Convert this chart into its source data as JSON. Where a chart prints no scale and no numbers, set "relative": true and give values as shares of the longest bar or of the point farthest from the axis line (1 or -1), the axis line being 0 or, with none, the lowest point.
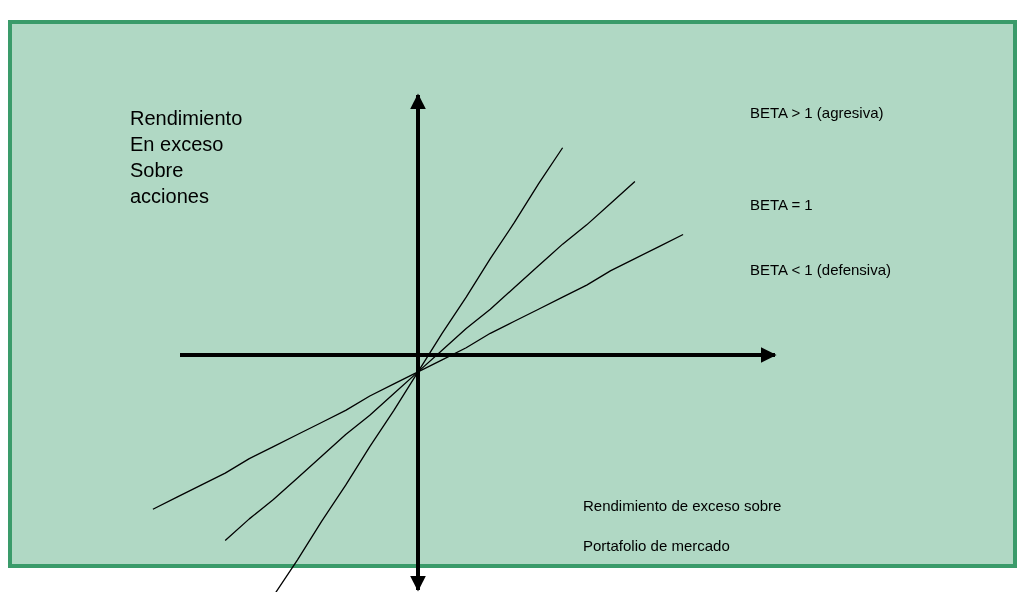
{
  "chart_data": {
    "type": "line",
    "relative": true,
    "ylabel": "Rendimiento\nEn exceso\nSobre\nacciones",
    "xlabel": "Rendimiento de exceso sobre\nPortafolio de mercado",
    "marker": "none",
    "line_style": "solid",
    "legend": false,
    "categories": [
      null,
      null,
      null,
      null,
      null,
      null,
      null,
      null,
      null,
      null,
      null,
      null,
      null,
      null,
      null,
      null,
      null,
      null,
      null,
      null,
      null,
      null,
      null
    ],
    "series": [
      {
        "name": "BETA > 1 (agresiva)",
        "color": "#000000",
        "values": [
          null,
          null,
          null,
          null,
          null,
          -1,
          -0.85,
          -0.69,
          -0.54,
          -0.38,
          -0.23,
          -0.07,
          0.09,
          0.24,
          0.4,
          0.55,
          0.71,
          0.86,
          null,
          null,
          null,
          null,
          null
        ]
      },
      {
        "name": "BETA = 1",
        "color": "#000000",
        "values": [
          null,
          null,
          null,
          -0.77,
          -0.68,
          -0.6,
          -0.51,
          -0.42,
          -0.33,
          -0.25,
          -0.16,
          -0.07,
          0.02,
          0.11,
          0.19,
          0.28,
          0.37,
          0.46,
          0.54,
          0.63,
          0.72,
          null,
          null
        ]
      },
      {
        "name": "BETA < 1 (defensiva)",
        "color": "#000000",
        "values": [
          -0.64,
          -0.59,
          -0.54,
          -0.49,
          -0.43,
          -0.38,
          -0.33,
          -0.28,
          -0.23,
          -0.17,
          -0.12,
          -0.07,
          -0.02,
          0.03,
          0.09,
          0.14,
          0.19,
          0.24,
          0.29,
          0.35,
          0.4,
          0.45,
          0.5
        ]
      }
    ]
  }
}
